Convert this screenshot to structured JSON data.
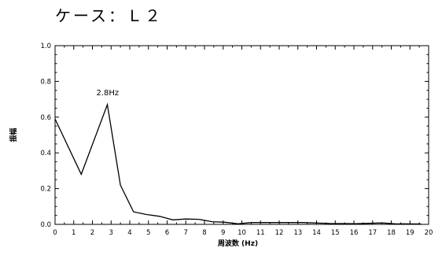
{
  "page": {
    "title": "ケース：Ｌ２"
  },
  "chart_data": {
    "type": "line",
    "title": "ケース：Ｌ２",
    "xlabel": "周波数 (Hz)",
    "ylabel": "振幅",
    "xlim": [
      0,
      20
    ],
    "ylim": [
      0,
      1.0
    ],
    "x_ticks": [
      0,
      1,
      2,
      3,
      4,
      5,
      6,
      7,
      8,
      9,
      10,
      11,
      12,
      13,
      14,
      15,
      16,
      17,
      18,
      19,
      20
    ],
    "y_ticks": [
      0.0,
      0.2,
      0.4,
      0.6,
      0.8,
      1.0
    ],
    "y_tick_labels": [
      "0.0",
      "0.2",
      "0.4",
      "0.6",
      "0.8",
      "1.0"
    ],
    "grid": false,
    "series": [
      {
        "x": [
          0,
          1.4,
          2.8,
          3.5,
          4.2,
          4.9,
          5.6,
          6.3,
          7.0,
          7.7,
          8.4,
          9.1,
          9.8,
          10.5,
          11.9,
          13.3,
          14.7,
          16.1,
          17.5,
          18.2,
          19.6
        ],
        "values": [
          0.59,
          0.28,
          0.67,
          0.22,
          0.07,
          0.055,
          0.045,
          0.025,
          0.03,
          0.028,
          0.015,
          0.012,
          0.003,
          0.01,
          0.01,
          0.01,
          0.005,
          0.004,
          0.008,
          0.003,
          0.002
        ]
      }
    ],
    "annotations": [
      {
        "text": "2.8Hz",
        "x": 2.8,
        "y": 0.67
      }
    ]
  }
}
